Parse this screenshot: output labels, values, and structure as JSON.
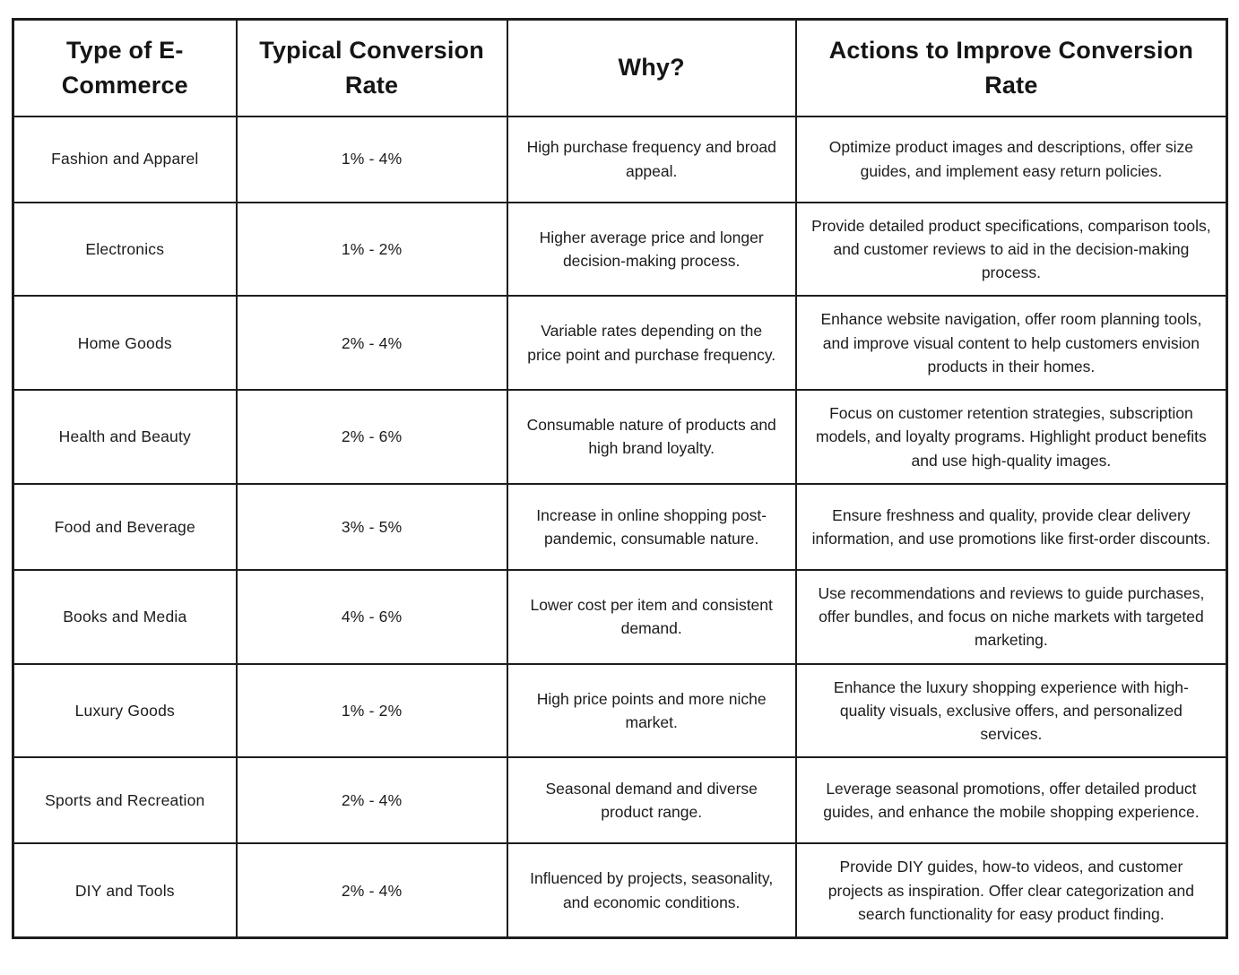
{
  "table": {
    "columns": [
      {
        "label": "Type of E-Commerce"
      },
      {
        "label": "Typical Conversion Rate"
      },
      {
        "label": "Why?"
      },
      {
        "label": "Actions to Improve Conversion Rate"
      }
    ],
    "rows": [
      {
        "type": "Fashion and Apparel",
        "rate": "1% - 4%",
        "why": "High purchase frequency and broad appeal.",
        "actions": "Optimize product images and descriptions, offer size guides, and implement easy return policies."
      },
      {
        "type": "Electronics",
        "rate": "1% - 2%",
        "why": "Higher average price and longer decision-making process.",
        "actions": "Provide detailed product specifications, comparison tools, and customer reviews to aid in the decision-making process."
      },
      {
        "type": "Home Goods",
        "rate": "2% - 4%",
        "why": "Variable rates depending on the price point and purchase frequency.",
        "actions": "Enhance website navigation, offer room planning tools, and improve visual content to help customers envision products in their homes."
      },
      {
        "type": "Health and Beauty",
        "rate": "2% - 6%",
        "why": "Consumable nature of products and high brand loyalty.",
        "actions": "Focus on customer retention strategies, subscription models, and loyalty programs. Highlight product benefits and use high-quality images."
      },
      {
        "type": "Food and Beverage",
        "rate": "3% - 5%",
        "why": "Increase in online shopping post-pandemic, consumable nature.",
        "actions": "Ensure freshness and quality, provide clear delivery information, and use promotions like first-order discounts."
      },
      {
        "type": "Books and Media",
        "rate": "4% - 6%",
        "why": "Lower cost per item and consistent demand.",
        "actions": "Use recommendations and reviews to guide purchases, offer bundles, and focus on niche markets with targeted marketing."
      },
      {
        "type": "Luxury Goods",
        "rate": "1% - 2%",
        "why": "High price points and more niche market.",
        "actions": "Enhance the luxury shopping experience with high-quality visuals, exclusive offers, and personalized services."
      },
      {
        "type": "Sports and Recreation",
        "rate": "2% - 4%",
        "why": "Seasonal demand and diverse product range.",
        "actions": "Leverage seasonal promotions, offer detailed product guides, and enhance the mobile shopping experience."
      },
      {
        "type": "DIY and Tools",
        "rate": "2% - 4%",
        "why": "Influenced by projects, seasonality, and economic conditions.",
        "actions": "Provide DIY guides, how-to videos, and customer projects as inspiration. Offer clear categorization and search functionality for easy product finding."
      }
    ]
  },
  "colors": {
    "border": "#1d1d1d",
    "text": "#1c1c1c",
    "background": "#ffffff"
  }
}
